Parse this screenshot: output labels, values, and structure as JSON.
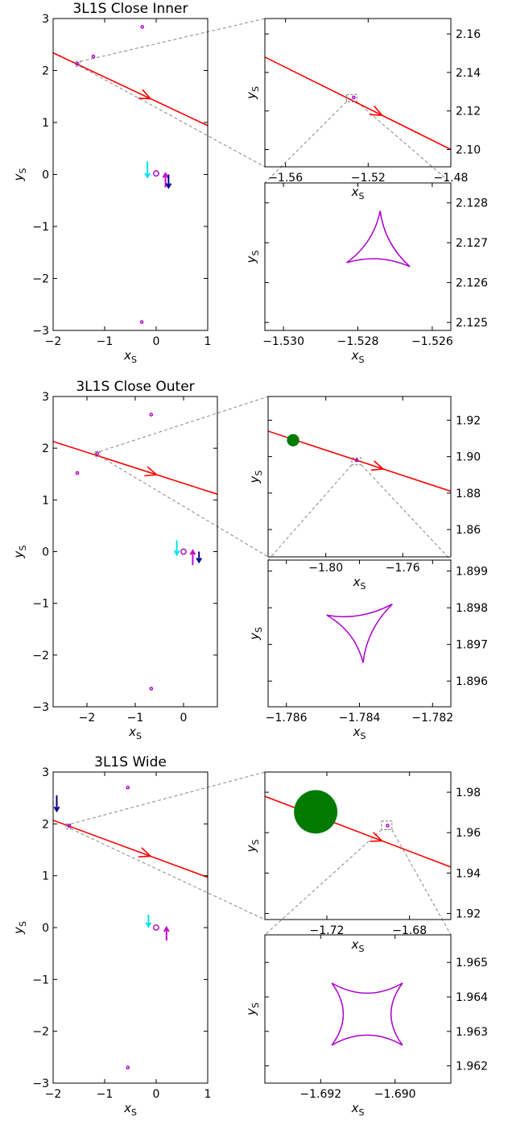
{
  "chart_data": [
    {
      "type": "scatter",
      "title": "3L1S Close Inner",
      "xlabel": "x_S",
      "ylabel": "y_S",
      "xlim": [
        -2,
        1
      ],
      "ylim": [
        -3,
        3
      ],
      "xticks": [
        "−2",
        "−1",
        "0",
        "1"
      ],
      "yticks": [
        "−3",
        "−2",
        "−1",
        "0",
        "1",
        "2",
        "3"
      ],
      "source_trajectory": {
        "color": "#ff0000",
        "x": [
          -2,
          1
        ],
        "y": [
          2.34,
          0.94
        ]
      },
      "caustics": [
        {
          "x": 0.0,
          "y": 0.02
        },
        {
          "x": -0.27,
          "y": 2.84
        },
        {
          "x": -0.28,
          "y": -2.84
        },
        {
          "x": -1.53,
          "y": 2.13
        },
        {
          "x": -1.22,
          "y": 2.27
        }
      ],
      "magnetic_arrows": [
        {
          "color": "#00e5ee",
          "x": -0.17,
          "y0": 0.25,
          "y1": -0.05
        },
        {
          "color": "#cc00cc",
          "x": 0.18,
          "y0": -0.25,
          "y1": 0.02
        },
        {
          "color": "#00008b",
          "x": 0.24,
          "y0": 0.0,
          "y1": -0.25
        }
      ],
      "zoom_box": {
        "x": [
          -1.565,
          -1.48
        ],
        "y": [
          2.09,
          2.165
        ]
      }
    },
    {
      "type": "scatter",
      "title": "",
      "xlabel": "x_S",
      "ylabel": "y_S",
      "xlim": [
        -1.57,
        -1.48
      ],
      "ylim": [
        2.091,
        2.168
      ],
      "xticks": [
        "−1.56",
        "−1.52",
        "−1.48"
      ],
      "yticks": [
        "2.10",
        "2.12",
        "2.14",
        "2.16"
      ],
      "source_trajectory": {
        "color": "#ff0000",
        "x": [
          -1.57,
          -1.48
        ],
        "y": [
          2.148,
          2.1
        ]
      },
      "caustics": [
        {
          "x": -1.527,
          "y": 2.127
        }
      ],
      "zoom_box": {
        "x": [
          -1.5305,
          -1.5255
        ],
        "y": [
          2.1248,
          2.1285
        ]
      }
    },
    {
      "type": "line",
      "title": "",
      "xlabel": "x_S",
      "ylabel": "y_S",
      "xlim": [
        -1.5305,
        -1.5255
      ],
      "ylim": [
        2.1248,
        2.1285
      ],
      "xticks": [
        "−1.530",
        "−1.528",
        "−1.526"
      ],
      "yticks": [
        "2.125",
        "2.126",
        "2.127",
        "2.128"
      ],
      "caustic_shape": "3-cusp",
      "caustic_color": "#aa00cc",
      "caustic_cusps": [
        [
          -1.5274,
          2.1278
        ],
        [
          -1.5283,
          2.1265
        ],
        [
          -1.5266,
          2.1264
        ]
      ]
    },
    {
      "type": "scatter",
      "title": "3L1S Close Outer",
      "xlabel": "x_S",
      "ylabel": "y_S",
      "xlim": [
        -2.7,
        0.7
      ],
      "ylim": [
        -3,
        3
      ],
      "xticks": [
        "−2",
        "−1",
        "0"
      ],
      "yticks": [
        "−3",
        "−2",
        "−1",
        "0",
        "1",
        "2",
        "3"
      ],
      "source_trajectory": {
        "color": "#ff0000",
        "x": [
          -2.7,
          0.7
        ],
        "y": [
          2.13,
          1.11
        ]
      },
      "caustics": [
        {
          "x": 0.0,
          "y": 0.0
        },
        {
          "x": -0.67,
          "y": 2.65
        },
        {
          "x": -0.67,
          "y": -2.65
        },
        {
          "x": -1.784,
          "y": 1.898
        },
        {
          "x": -2.2,
          "y": 1.52
        }
      ],
      "magnetic_arrows": [
        {
          "color": "#00e5ee",
          "x": -0.14,
          "y0": 0.22,
          "y1": -0.06
        },
        {
          "color": "#cc00cc",
          "x": 0.19,
          "y0": -0.26,
          "y1": 0.02
        },
        {
          "color": "#00008b",
          "x": 0.32,
          "y0": 0.0,
          "y1": -0.2
        }
      ],
      "zoom_box": {
        "x": [
          -1.83,
          -1.735
        ],
        "y": [
          1.845,
          1.933
        ]
      }
    },
    {
      "type": "scatter",
      "title": "",
      "xlabel": "x_S",
      "ylabel": "y_S",
      "xlim": [
        -1.83,
        -1.735
      ],
      "ylim": [
        1.845,
        1.933
      ],
      "xticks": [
        "−1.80",
        "−1.76"
      ],
      "yticks": [
        "1.86",
        "1.88",
        "1.90",
        "1.92"
      ],
      "source_trajectory": {
        "color": "#ff0000",
        "x": [
          -1.83,
          -1.735
        ],
        "y": [
          1.914,
          1.881
        ]
      },
      "source_disk": {
        "color": "#007a00",
        "x": -1.817,
        "y": 1.909,
        "r": 0.0032
      },
      "caustics": [
        {
          "x": -1.784,
          "y": 1.898
        }
      ],
      "zoom_box": {
        "x": [
          -1.7865,
          -1.7815
        ],
        "y": [
          1.8955,
          1.8993
        ]
      }
    },
    {
      "type": "line",
      "title": "",
      "xlabel": "x_S",
      "ylabel": "y_S",
      "xlim": [
        -1.7865,
        -1.7815
      ],
      "ylim": [
        1.8953,
        1.8993
      ],
      "xticks": [
        "−1.786",
        "−1.784",
        "−1.782"
      ],
      "yticks": [
        "1.896",
        "1.897",
        "1.898",
        "1.899"
      ],
      "caustic_shape": "3-cusp",
      "caustic_color": "#aa00cc",
      "caustic_cusps": [
        [
          -1.7849,
          1.8978
        ],
        [
          -1.7831,
          1.8981
        ],
        [
          -1.7839,
          1.8965
        ]
      ]
    },
    {
      "type": "scatter",
      "title": "3L1S Wide",
      "xlabel": "x_S",
      "ylabel": "y_S",
      "xlim": [
        -2,
        1
      ],
      "ylim": [
        -3,
        3
      ],
      "xticks": [
        "−2",
        "−1",
        "0",
        "1"
      ],
      "yticks": [
        "−3",
        "−2",
        "−1",
        "0",
        "1",
        "2",
        "3"
      ],
      "source_trajectory": {
        "color": "#ff0000",
        "x": [
          -2,
          1
        ],
        "y": [
          2.07,
          0.97
        ]
      },
      "caustics": [
        {
          "x": 0.0,
          "y": 0.0
        },
        {
          "x": -0.55,
          "y": 2.7
        },
        {
          "x": -0.55,
          "y": -2.7
        },
        {
          "x": -1.69,
          "y": 1.963
        }
      ],
      "magnetic_arrows": [
        {
          "color": "#00e5ee",
          "x": -0.15,
          "y0": 0.25,
          "y1": 0.02
        },
        {
          "color": "#cc00cc",
          "x": 0.2,
          "y0": -0.25,
          "y1": 0.0
        },
        {
          "color": "#00008b",
          "x": -1.93,
          "y0": 2.55,
          "y1": 2.25
        }
      ],
      "zoom_box": {
        "x": [
          -1.75,
          -1.66
        ],
        "y": [
          1.917,
          1.99
        ]
      }
    },
    {
      "type": "scatter",
      "title": "",
      "xlabel": "x_S",
      "ylabel": "y_S",
      "xlim": [
        -1.75,
        -1.66
      ],
      "ylim": [
        1.917,
        1.99
      ],
      "xticks": [
        "−1.72",
        "−1.68"
      ],
      "yticks": [
        "1.92",
        "1.94",
        "1.96",
        "1.98"
      ],
      "source_trajectory": {
        "color": "#ff0000",
        "x": [
          -1.75,
          -1.66
        ],
        "y": [
          1.978,
          1.943
        ]
      },
      "source_disk": {
        "color": "#007a00",
        "x": -1.7254,
        "y": 1.9703,
        "r": 0.0105
      },
      "caustics": [
        {
          "x": -1.6906,
          "y": 1.9635
        }
      ],
      "zoom_box": {
        "x": [
          -1.6935,
          -1.6885
        ],
        "y": [
          1.9615,
          1.9657
        ]
      }
    },
    {
      "type": "line",
      "title": "",
      "xlabel": "x_S",
      "ylabel": "y_S",
      "xlim": [
        -1.6935,
        -1.6885
      ],
      "ylim": [
        1.9615,
        1.9658
      ],
      "xticks": [
        "−1.692",
        "−1.690"
      ],
      "yticks": [
        "1.962",
        "1.963",
        "1.964",
        "1.965"
      ],
      "caustic_shape": "4-cusp",
      "caustic_color": "#aa00cc",
      "caustic_cusps": [
        [
          -1.6917,
          1.9644
        ],
        [
          -1.6898,
          1.9644
        ],
        [
          -1.6898,
          1.9626
        ],
        [
          -1.6917,
          1.9626
        ]
      ]
    }
  ]
}
